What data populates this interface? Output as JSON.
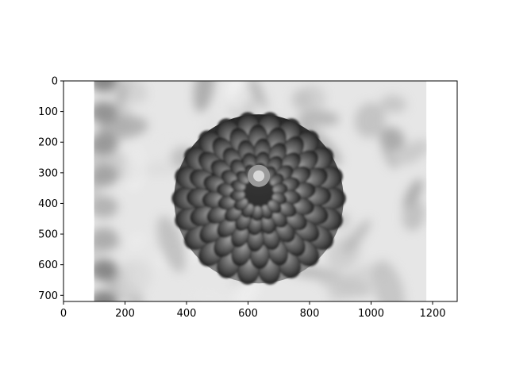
{
  "chart_data": {
    "type": "heatmap",
    "title": "",
    "xlabel": "",
    "ylabel": "",
    "xlim": [
      0,
      1280
    ],
    "ylim": [
      720,
      0
    ],
    "image_extent": {
      "x": [
        100,
        1180
      ],
      "y": [
        0,
        720
      ]
    },
    "colormap": "gray",
    "grid": false,
    "x_ticks": [
      {
        "value": 0,
        "label": "0"
      },
      {
        "value": 200,
        "label": "200"
      },
      {
        "value": 400,
        "label": "400"
      },
      {
        "value": 600,
        "label": "600"
      },
      {
        "value": 800,
        "label": "800"
      },
      {
        "value": 1000,
        "label": "1000"
      },
      {
        "value": 1200,
        "label": "1200"
      }
    ],
    "y_ticks": [
      {
        "value": 0,
        "label": "0"
      },
      {
        "value": 100,
        "label": "100"
      },
      {
        "value": 200,
        "label": "200"
      },
      {
        "value": 300,
        "label": "300"
      },
      {
        "value": 400,
        "label": "400"
      },
      {
        "value": 500,
        "label": "500"
      },
      {
        "value": 600,
        "label": "600"
      },
      {
        "value": 700,
        "label": "700"
      }
    ],
    "subject": {
      "center": [
        635,
        385
      ],
      "radius_x": 290,
      "radius_y": 300,
      "core": [
        635,
        310
      ]
    }
  },
  "colors": {
    "background": "#ffffff",
    "axis": "#000000",
    "image_bright": "#e6e6e6",
    "image_mid": "#bdbdbd",
    "flower_dark": "#1e1e1e",
    "flower_light": "#8a8a8a"
  }
}
